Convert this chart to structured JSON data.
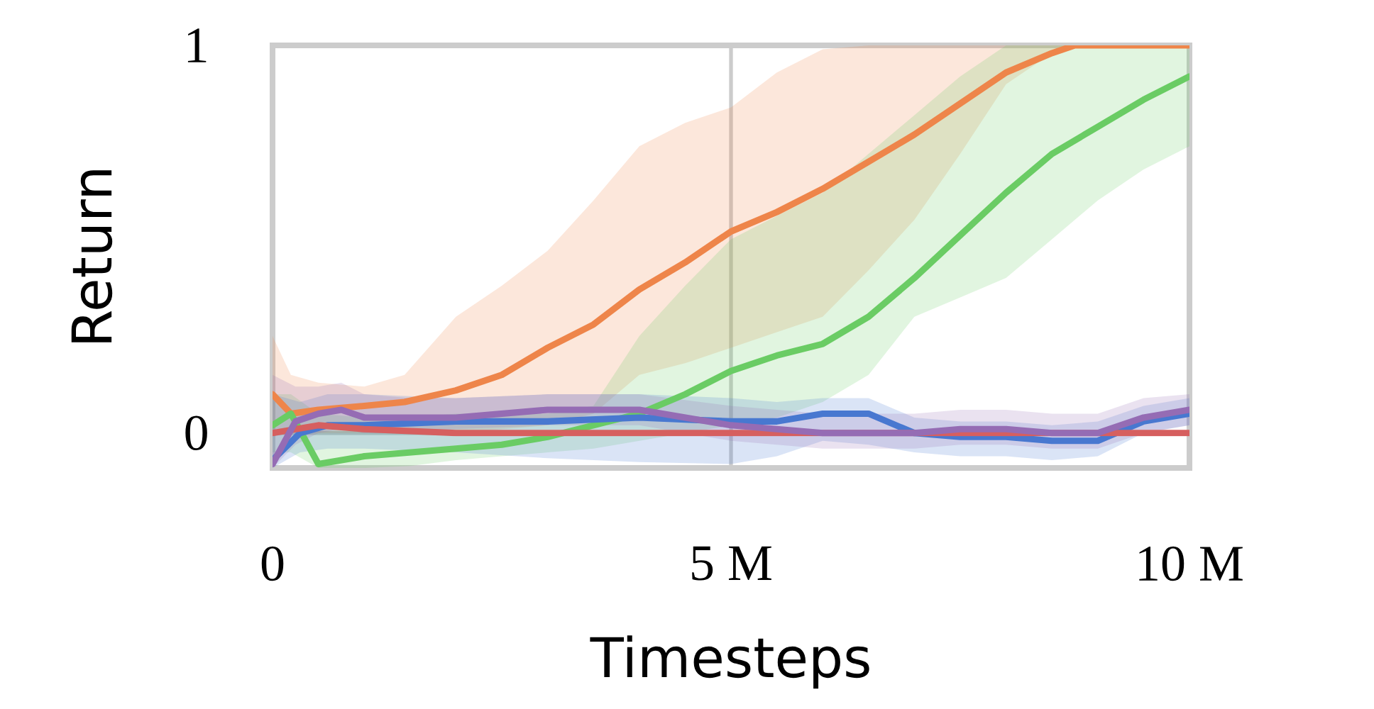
{
  "chart_data": {
    "type": "line",
    "xlabel": "Timesteps",
    "ylabel": "Return",
    "xlim": [
      0,
      10
    ],
    "ylim": [
      -0.09,
      1
    ],
    "xticks": [
      0,
      {
        "value": 5,
        "label": "5 M"
      },
      {
        "value": 10,
        "label": "10 M"
      }
    ],
    "yticks": [
      0,
      1
    ],
    "grid": true,
    "line_style": "solid",
    "series": [
      {
        "color": "#ee854a",
        "x": [
          0,
          0.2,
          0.5,
          1,
          1.44,
          2,
          2.5,
          3,
          3.5,
          4,
          4.5,
          5,
          5.5,
          6,
          6.5,
          7,
          7.5,
          8,
          8.5,
          8.75,
          9,
          9.5,
          10
        ],
        "values": [
          0.1,
          0.05,
          0.06,
          0.07,
          0.08,
          0.11,
          0.15,
          0.22,
          0.28,
          0.37,
          0.44,
          0.52,
          0.57,
          0.63,
          0.7,
          0.77,
          0.85,
          0.93,
          0.98,
          1.0,
          1.0,
          1.0,
          1.0
        ],
        "lower": [
          0.0,
          0.0,
          0.0,
          0.0,
          0.0,
          0.0,
          0.01,
          0.02,
          0.05,
          0.15,
          0.18,
          0.22,
          0.26,
          0.3,
          0.42,
          0.55,
          0.72,
          0.9,
          0.98,
          1.0,
          1.0,
          1.0,
          1.0
        ],
        "upper": [
          0.25,
          0.15,
          0.13,
          0.12,
          0.15,
          0.3,
          0.38,
          0.47,
          0.6,
          0.74,
          0.8,
          0.84,
          0.93,
          0.99,
          1.0,
          1.0,
          1.0,
          1.0,
          1.0,
          1.0,
          1.0,
          1.0,
          1.0
        ]
      },
      {
        "color": "#6acc64",
        "x": [
          0,
          0.2,
          0.5,
          1,
          1.5,
          2,
          2.5,
          3,
          3.5,
          4,
          4.5,
          5,
          5.5,
          6,
          6.5,
          7,
          7.5,
          8,
          8.5,
          9,
          9.5,
          10
        ],
        "values": [
          0.02,
          0.05,
          -0.08,
          -0.06,
          -0.05,
          -0.04,
          -0.03,
          -0.01,
          0.02,
          0.05,
          0.1,
          0.16,
          0.2,
          0.23,
          0.3,
          0.4,
          0.51,
          0.62,
          0.72,
          0.79,
          0.86,
          0.92
        ],
        "lower": [
          -0.05,
          -0.05,
          -0.09,
          -0.09,
          -0.085,
          -0.07,
          -0.06,
          -0.05,
          -0.04,
          -0.02,
          0.0,
          0.02,
          0.04,
          0.08,
          0.15,
          0.3,
          0.35,
          0.4,
          0.5,
          0.6,
          0.68,
          0.74
        ],
        "upper": [
          0.1,
          0.1,
          0.05,
          0.04,
          0.04,
          0.05,
          0.05,
          0.05,
          0.07,
          0.25,
          0.38,
          0.5,
          0.56,
          0.62,
          0.72,
          0.82,
          0.92,
          1.0,
          1.0,
          1.0,
          1.0,
          1.0
        ]
      },
      {
        "color": "#4878d0",
        "x": [
          0,
          0.3,
          0.6,
          1,
          2,
          3,
          4,
          5,
          5.5,
          6,
          6.5,
          7,
          7.5,
          8,
          8.5,
          9,
          9.5,
          10
        ],
        "values": [
          -0.07,
          0.0,
          0.02,
          0.02,
          0.03,
          0.03,
          0.04,
          0.03,
          0.03,
          0.05,
          0.05,
          0.0,
          -0.01,
          -0.01,
          -0.02,
          -0.02,
          0.03,
          0.05
        ],
        "lower": [
          -0.09,
          -0.05,
          -0.04,
          -0.04,
          -0.05,
          -0.065,
          -0.075,
          -0.08,
          -0.06,
          -0.02,
          -0.03,
          -0.05,
          -0.06,
          -0.06,
          -0.07,
          -0.06,
          0.0,
          0.02
        ],
        "upper": [
          0.1,
          0.08,
          0.1,
          0.1,
          0.09,
          0.1,
          0.1,
          0.09,
          0.08,
          0.09,
          0.09,
          0.04,
          0.03,
          0.03,
          0.02,
          0.03,
          0.07,
          0.09
        ]
      },
      {
        "color": "#d65f5f",
        "x": [
          0,
          0.5,
          1,
          2,
          3,
          4,
          5,
          6,
          7,
          8,
          9,
          10
        ],
        "values": [
          0.0,
          0.02,
          0.01,
          0.0,
          0.0,
          0.0,
          0.0,
          0.0,
          0.0,
          0.0,
          0.0,
          0.0
        ]
      },
      {
        "color": "#956cb4",
        "x": [
          0,
          0.25,
          0.5,
          0.75,
          1,
          1.5,
          2,
          3,
          4,
          5,
          6,
          7,
          7.5,
          8,
          8.5,
          9,
          9.5,
          10
        ],
        "values": [
          -0.08,
          0.03,
          0.05,
          0.06,
          0.04,
          0.04,
          0.04,
          0.06,
          0.06,
          0.02,
          0.0,
          0.0,
          0.01,
          0.01,
          0.0,
          0.0,
          0.04,
          0.06
        ],
        "lower": [
          -0.09,
          -0.03,
          0.0,
          0.01,
          0.0,
          0.0,
          0.01,
          0.02,
          0.02,
          -0.02,
          -0.04,
          -0.04,
          -0.03,
          -0.03,
          -0.04,
          -0.04,
          0.0,
          0.02
        ],
        "upper": [
          0.15,
          0.12,
          0.12,
          0.13,
          0.1,
          0.09,
          0.09,
          0.1,
          0.1,
          0.07,
          0.05,
          0.05,
          0.06,
          0.06,
          0.05,
          0.05,
          0.09,
          0.1
        ]
      }
    ]
  }
}
